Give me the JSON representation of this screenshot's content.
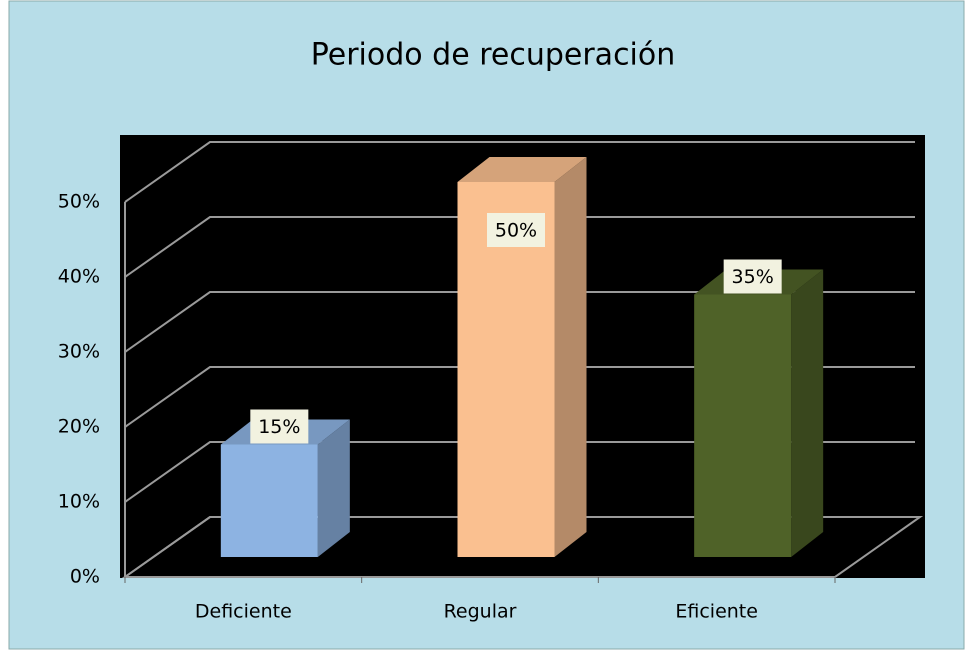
{
  "chart_data": {
    "type": "bar3d",
    "title": "Periodo de recuperación",
    "categories": [
      "Deficiente",
      "Regular",
      "Eficiente"
    ],
    "values": [
      15,
      50,
      35
    ],
    "value_labels": [
      "15%",
      "50%",
      "35%"
    ],
    "colors": [
      "#8db3e2",
      "#fac090",
      "#4f6228"
    ],
    "ylim": [
      0,
      50
    ],
    "yticks": [
      {
        "value": 0,
        "label": "0%"
      },
      {
        "value": 10,
        "label": "10%"
      },
      {
        "value": 20,
        "label": "20%"
      },
      {
        "value": 30,
        "label": "30%"
      },
      {
        "value": 40,
        "label": "40%"
      },
      {
        "value": 50,
        "label": "50%"
      }
    ],
    "grid": true
  }
}
